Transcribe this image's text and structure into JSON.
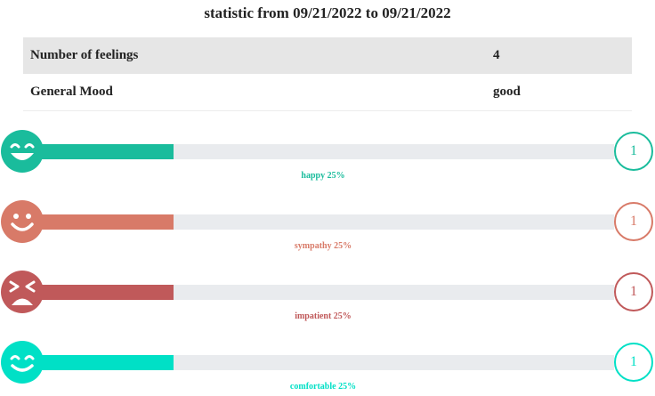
{
  "title": "statistic from 09/21/2022 to 09/21/2022",
  "stats": [
    {
      "label": "Number of feelings",
      "value": "4"
    },
    {
      "label": "General Mood",
      "value": "good"
    }
  ],
  "feelings": [
    {
      "name": "happy",
      "label": "happy 25%",
      "percent": 25,
      "count": "1",
      "color": "#1abc9c",
      "icon": "grinning-face-icon"
    },
    {
      "name": "sympathy",
      "label": "sympathy 25%",
      "percent": 25,
      "count": "1",
      "color": "#d87a68",
      "icon": "smiling-face-icon"
    },
    {
      "name": "impatient",
      "label": "impatient 25%",
      "percent": 25,
      "count": "1",
      "color": "#c0595a",
      "icon": "frustrated-face-icon"
    },
    {
      "name": "comfortable",
      "label": "comfortable 25%",
      "percent": 25,
      "count": "1",
      "color": "#00e0c6",
      "icon": "relieved-face-icon"
    }
  ]
}
